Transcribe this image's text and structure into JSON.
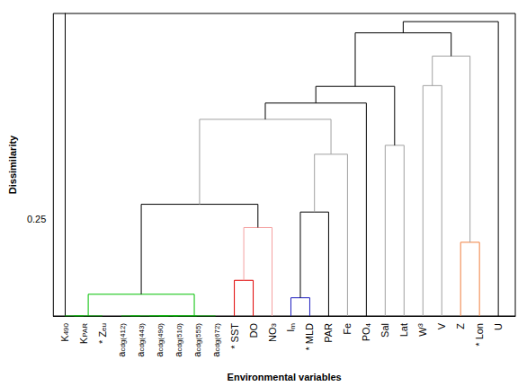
{
  "chart_data": {
    "type": "dendrogram",
    "y_label": "Dissimilarity",
    "x_label": "Environmental variables",
    "ylim": [
      0,
      0.78
    ],
    "yticks": [
      0.25
    ],
    "grid": false,
    "leaves": [
      {
        "base": "K",
        "sub": "490"
      },
      {
        "base": "K",
        "sub": "PAR"
      },
      {
        "base": "* Z",
        "sub": "eu"
      },
      {
        "base": "a",
        "sub": "cdg(412)"
      },
      {
        "base": "a",
        "sub": "cdg(443)"
      },
      {
        "base": "a",
        "sub": "cdg(490)"
      },
      {
        "base": "a",
        "sub": "cdg(510)"
      },
      {
        "base": "a",
        "sub": "cdg(555)"
      },
      {
        "base": "a",
        "sub": "cdg(672)"
      },
      {
        "base": "* SST"
      },
      {
        "base": "DO"
      },
      {
        "base": "NO",
        "sub": "3"
      },
      {
        "base": "I",
        "sub": "m"
      },
      {
        "base": "* MLD"
      },
      {
        "base": "PAR"
      },
      {
        "base": "Fe"
      },
      {
        "base": "PO",
        "sub": "4"
      },
      {
        "base": "Sal"
      },
      {
        "base": "Lat"
      },
      {
        "base": "W",
        "sup": "3"
      },
      {
        "base": "V"
      },
      {
        "base": "Z"
      },
      {
        "base": "* Lon"
      },
      {
        "base": "U"
      }
    ],
    "merges": [
      {
        "children": [
          0,
          1
        ],
        "height": 0,
        "color": "#00c000"
      },
      {
        "children": [
          24,
          2
        ],
        "height": 0,
        "color": "#00c000"
      },
      {
        "children": [
          3,
          4
        ],
        "height": 0,
        "color": "#00c000"
      },
      {
        "children": [
          5,
          6
        ],
        "height": 0,
        "color": "#00c000"
      },
      {
        "children": [
          26,
          27
        ],
        "height": 0,
        "color": "#00c000"
      },
      {
        "children": [
          28,
          7
        ],
        "height": 0,
        "color": "#00c000"
      },
      {
        "children": [
          29,
          8
        ],
        "height": 0,
        "color": "#00c000"
      },
      {
        "children": [
          25,
          30
        ],
        "height": 0.056,
        "color": "#00c000"
      },
      {
        "children": [
          9,
          10
        ],
        "height": 0.092,
        "color": "#e00000"
      },
      {
        "children": [
          32,
          11
        ],
        "height": 0.228,
        "color": "#f4a0a0"
      },
      {
        "children": [
          12,
          13
        ],
        "height": 0.047,
        "color": "#2020c0"
      },
      {
        "children": [
          34,
          14
        ],
        "height": 0.268,
        "color": "#000000"
      },
      {
        "children": [
          35,
          15
        ],
        "height": 0.417,
        "color": "#a0a0a0"
      },
      {
        "children": [
          31,
          33
        ],
        "height": 0.288,
        "color": "#000000"
      },
      {
        "children": [
          37,
          36
        ],
        "height": 0.507,
        "color": "#a0a0a0"
      },
      {
        "children": [
          38,
          16
        ],
        "height": 0.549,
        "color": "#000000"
      },
      {
        "children": [
          17,
          18
        ],
        "height": 0.44,
        "color": "#a0a0a0"
      },
      {
        "children": [
          39,
          40
        ],
        "height": 0.592,
        "color": "#000000"
      },
      {
        "children": [
          19,
          20
        ],
        "height": 0.594,
        "color": "#a0a0a0"
      },
      {
        "children": [
          21,
          22
        ],
        "height": 0.19,
        "color": "#f08040"
      },
      {
        "children": [
          42,
          43
        ],
        "height": 0.67,
        "color": "#a0a0a0"
      },
      {
        "children": [
          41,
          44
        ],
        "height": 0.73,
        "color": "#000000"
      },
      {
        "children": [
          45,
          23
        ],
        "height": 0.759,
        "color": "#000000"
      }
    ]
  }
}
